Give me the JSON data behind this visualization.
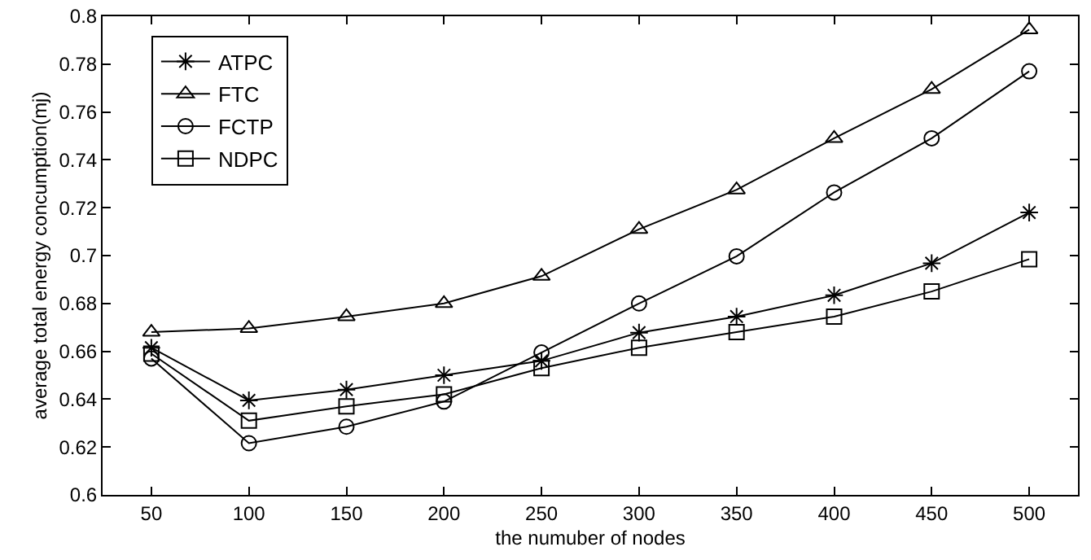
{
  "chart_data": {
    "type": "line",
    "xlabel": "the numuber of nodes",
    "ylabel": "average total energy concumption(mj)",
    "x": [
      50,
      100,
      150,
      200,
      250,
      300,
      350,
      400,
      450,
      500
    ],
    "xlim": [
      25,
      525
    ],
    "xticks": [
      50,
      100,
      150,
      200,
      250,
      300,
      350,
      400,
      450,
      500
    ],
    "ylim": [
      0.6,
      0.8
    ],
    "yticks": [
      0.6,
      0.62,
      0.64,
      0.66,
      0.68,
      0.7,
      0.72,
      0.74,
      0.76,
      0.78,
      0.8
    ],
    "grid": false,
    "legend": "top left",
    "line_style": "solid",
    "series": [
      {
        "name": "ATPC",
        "color": "#000000",
        "marker": "cross",
        "values": [
          0.6615,
          0.6395,
          0.644,
          0.65,
          0.656,
          0.6678,
          0.6745,
          0.6834,
          0.6968,
          0.718
        ]
      },
      {
        "name": "FTC",
        "color": "#000000",
        "marker": "triangle",
        "values": [
          0.668,
          0.6696,
          0.6745,
          0.68,
          0.6914,
          0.711,
          0.7275,
          0.749,
          0.7695,
          0.7944
        ]
      },
      {
        "name": "FCTP",
        "color": "#000000",
        "marker": "circle",
        "values": [
          0.657,
          0.6216,
          0.6285,
          0.639,
          0.6595,
          0.68,
          0.6997,
          0.7264,
          0.749,
          0.777
        ]
      },
      {
        "name": "NDPC",
        "color": "#000000",
        "marker": "square",
        "values": [
          0.659,
          0.631,
          0.637,
          0.642,
          0.653,
          0.6615,
          0.668,
          0.6745,
          0.685,
          0.6985
        ]
      }
    ]
  }
}
